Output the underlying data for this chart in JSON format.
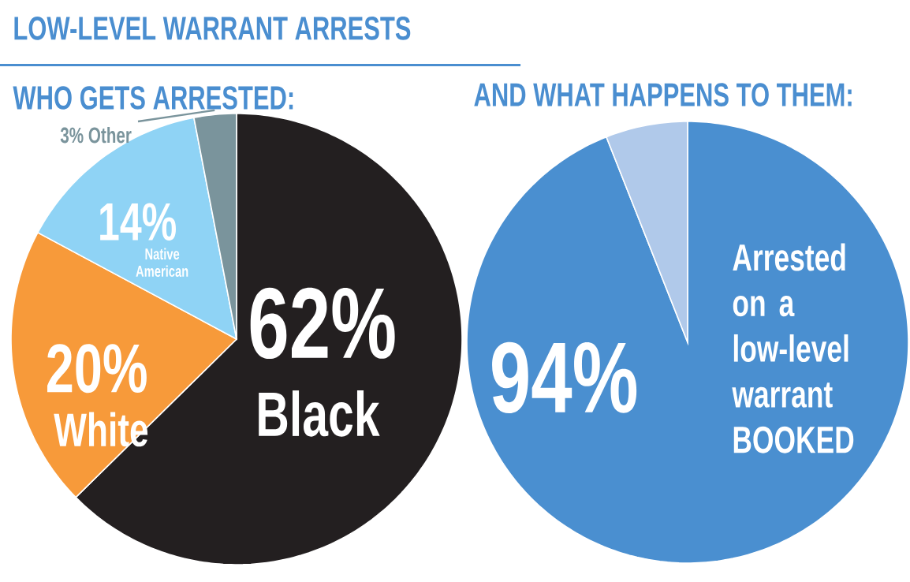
{
  "chart_data": [
    {
      "type": "pie",
      "title": "LOW-LEVEL WARRANT ARRESTS",
      "subtitle": "WHO GETS ARRESTED:",
      "categories": [
        "Black",
        "White",
        "Native American",
        "Other"
      ],
      "values": [
        62,
        20,
        14,
        3
      ],
      "colors": [
        "#231f20",
        "#f79a3a",
        "#8fd3f5",
        "#7a949c"
      ],
      "value_labels": [
        "62%",
        "20%",
        "14%",
        "3%"
      ]
    },
    {
      "type": "pie",
      "title": "AND WHAT HAPPENS TO THEM:",
      "categories": [
        "Arrested on a low-level warrant BOOKED",
        null
      ],
      "values": [
        94,
        6
      ],
      "colors": [
        "#4a8fd0",
        "#b0c9ea"
      ],
      "value_labels": [
        "94%",
        null
      ]
    }
  ]
}
